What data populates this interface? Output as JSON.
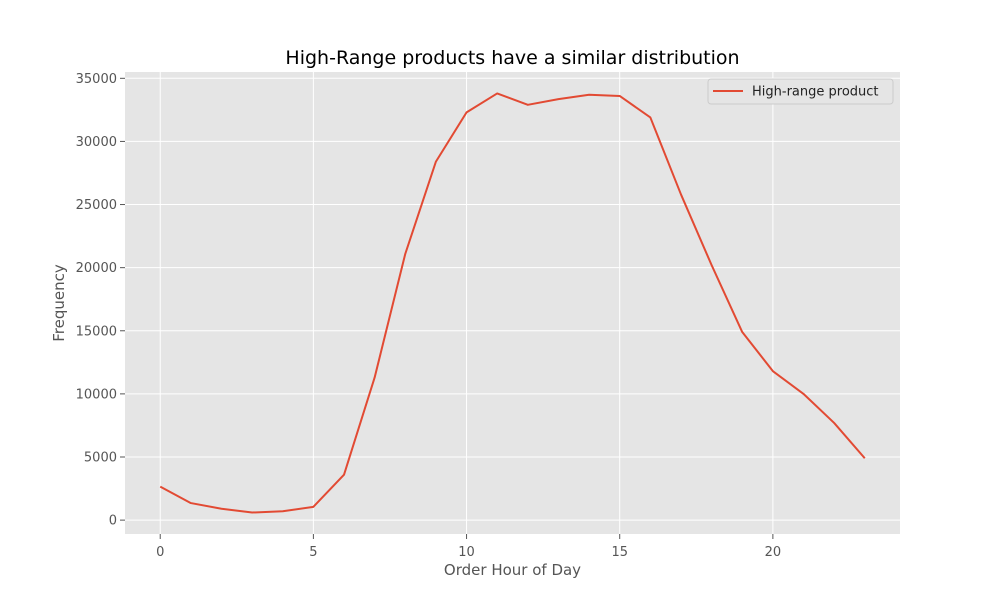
{
  "chart_data": {
    "type": "line",
    "title": "High-Range products have a similar distribution",
    "xlabel": "Order Hour of Day",
    "ylabel": "Frequency",
    "xlim": [
      -1.15,
      24.15
    ],
    "ylim": [
      -1100,
      35500
    ],
    "xticks": [
      0,
      5,
      10,
      15,
      20
    ],
    "yticks": [
      0,
      5000,
      10000,
      15000,
      20000,
      25000,
      30000,
      35000
    ],
    "grid": true,
    "legend_position": "top-right",
    "series": [
      {
        "name": "High-range product",
        "color": "#E24A33",
        "x": [
          0,
          1,
          2,
          3,
          4,
          5,
          6,
          7,
          8,
          9,
          10,
          11,
          12,
          13,
          14,
          15,
          16,
          17,
          18,
          19,
          20,
          21,
          22,
          23
        ],
        "values": [
          2650,
          1350,
          900,
          600,
          700,
          1050,
          3600,
          11300,
          21100,
          28400,
          32300,
          33800,
          32900,
          33350,
          33700,
          33600,
          31900,
          25800,
          20200,
          14900,
          11800,
          10000,
          7700,
          4900
        ]
      }
    ]
  }
}
